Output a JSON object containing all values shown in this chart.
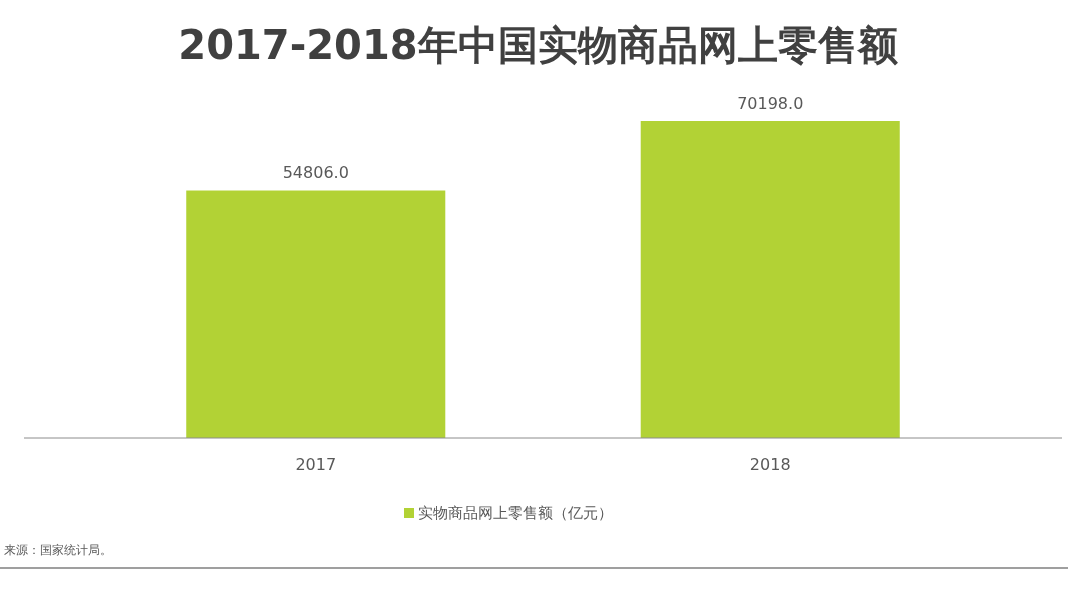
{
  "chart_data": {
    "type": "bar",
    "title": "2017-2018年中国实物商品网上零售额",
    "categories": [
      "2017",
      "2018"
    ],
    "series": [
      {
        "name": "实物商品网上零售额（亿元）",
        "color": "#b2d235",
        "values": [
          54806.0,
          70198.0
        ],
        "value_labels": [
          "54806.0",
          "70198.0"
        ]
      }
    ],
    "legend": "bottom",
    "tick_labels": "x",
    "annotations": [
      "来源：国家统计局。"
    ]
  }
}
